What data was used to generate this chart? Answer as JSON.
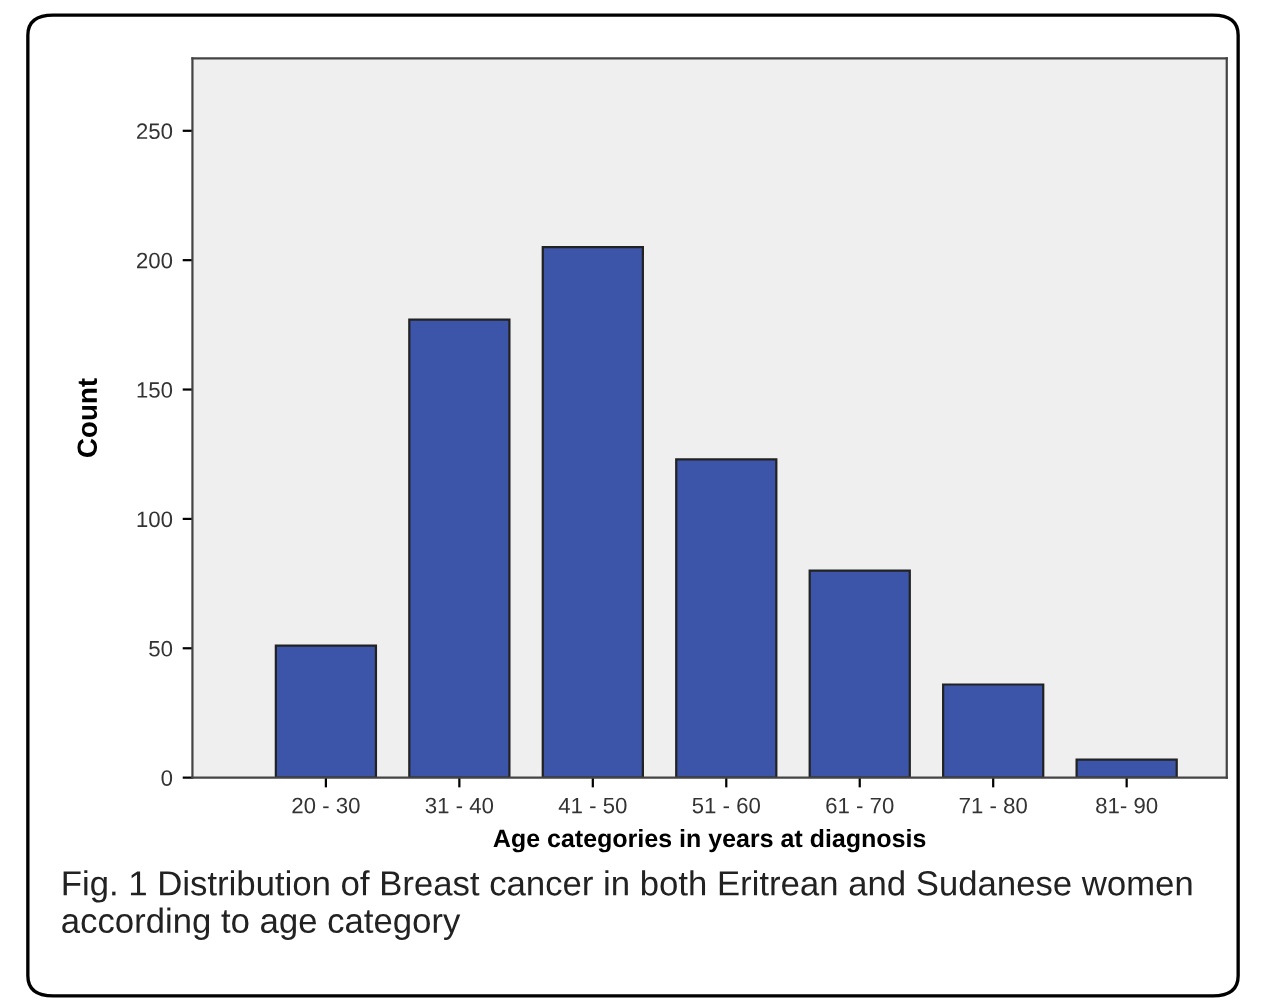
{
  "chart_data": {
    "type": "bar",
    "xlabel": "Age categories in years at diagnosis",
    "ylabel": "Count",
    "categories": [
      "20 - 30",
      "31 - 40",
      "41 - 50",
      "51 - 60",
      "61 - 70",
      "71 - 80",
      "81- 90"
    ],
    "values": [
      51,
      177,
      205,
      123,
      80,
      36,
      7
    ],
    "color": "#3d55a8",
    "ylim": [
      0,
      278
    ],
    "yticks": [
      0,
      50,
      100,
      150,
      200,
      250
    ],
    "grid": false,
    "annotations": [
      "Fig. 1 Distribution of Breast cancer in both Eritrean and Sudanese women according to age category"
    ]
  }
}
